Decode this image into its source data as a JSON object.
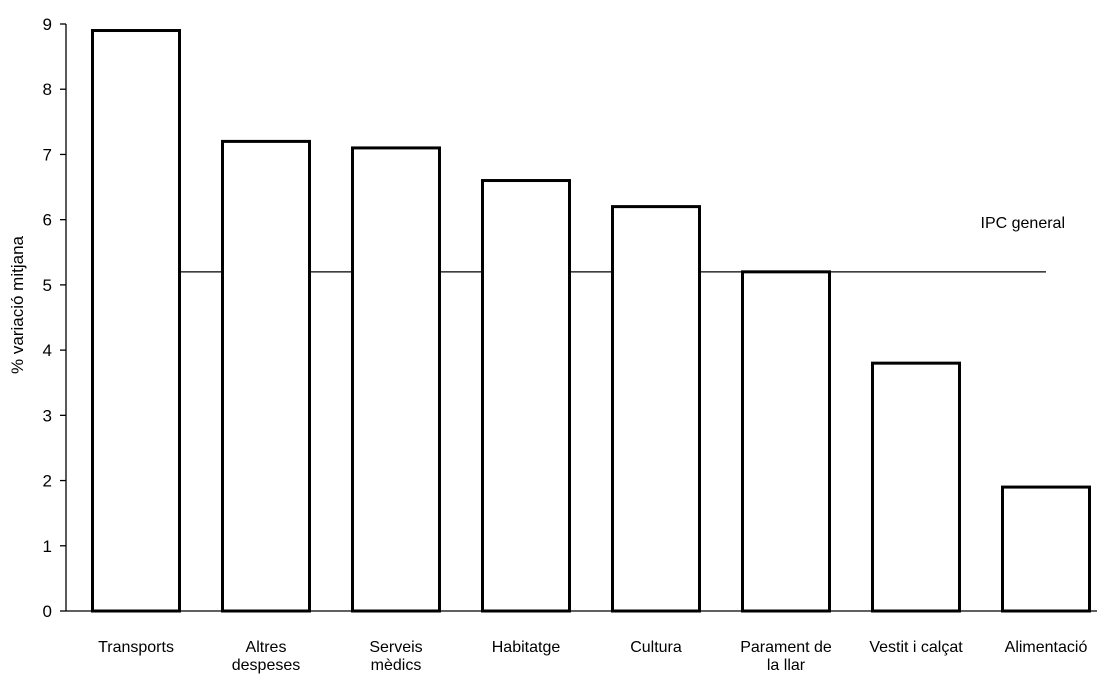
{
  "chart_data": {
    "type": "bar",
    "ylabel": "% variació mitjana",
    "xlabel": "",
    "ylim": [
      0,
      9
    ],
    "yticks": [
      0,
      1,
      2,
      3,
      4,
      5,
      6,
      7,
      8,
      9
    ],
    "grid": false,
    "categories": [
      [
        "Transports"
      ],
      [
        "Altres",
        "despeses"
      ],
      [
        "Serveis",
        "mèdics"
      ],
      [
        "Habitatge"
      ],
      [
        "Cultura"
      ],
      [
        "Parament de",
        "la llar"
      ],
      [
        "Vestit i calçat"
      ],
      [
        "Alimentació"
      ]
    ],
    "values": [
      8.9,
      7.2,
      7.1,
      6.6,
      6.2,
      5.2,
      3.8,
      1.9
    ],
    "reference_line": {
      "label": "IPC general",
      "value": 5.2
    }
  }
}
